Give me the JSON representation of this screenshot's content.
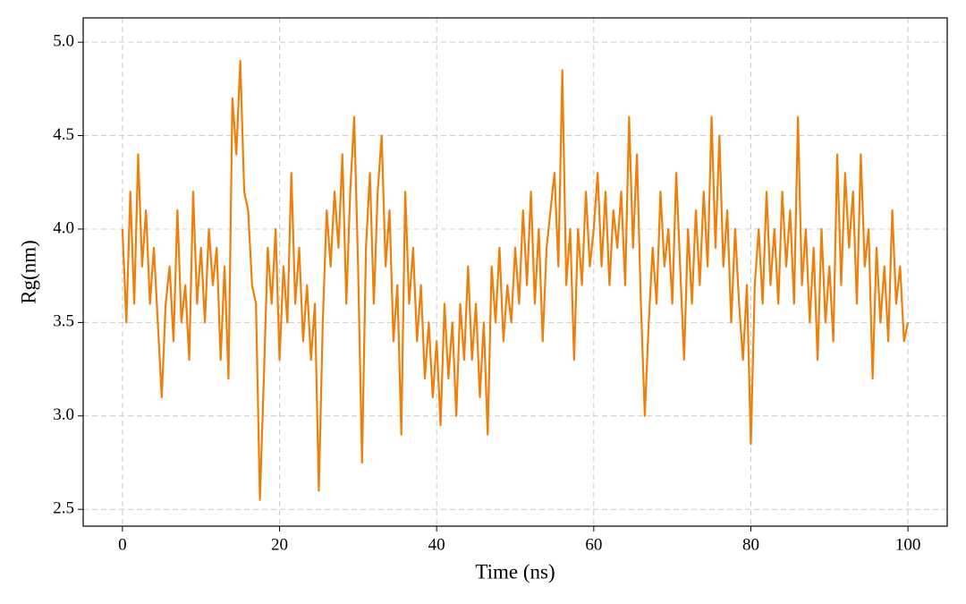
{
  "chart_data": {
    "type": "line",
    "xlabel": "Time (ns)",
    "ylabel": "Rg(nm)",
    "x": [
      0,
      0.5,
      1,
      1.5,
      2,
      2.5,
      3,
      3.5,
      4,
      4.5,
      5,
      5.5,
      6,
      6.5,
      7,
      7.5,
      8,
      8.5,
      9,
      9.5,
      10,
      10.5,
      11,
      11.5,
      12,
      12.5,
      13,
      13.5,
      14,
      14.5,
      15,
      15.5,
      16,
      16.5,
      17,
      17.5,
      18,
      18.5,
      19,
      19.5,
      20,
      20.5,
      21,
      21.5,
      22,
      22.5,
      23,
      23.5,
      24,
      24.5,
      25,
      25.5,
      26,
      26.5,
      27,
      27.5,
      28,
      28.5,
      29,
      29.5,
      30,
      30.5,
      31,
      31.5,
      32,
      32.5,
      33,
      33.5,
      34,
      34.5,
      35,
      35.5,
      36,
      36.5,
      37,
      37.5,
      38,
      38.5,
      39,
      39.5,
      40,
      40.5,
      41,
      41.5,
      42,
      42.5,
      43,
      43.5,
      44,
      44.5,
      45,
      45.5,
      46,
      46.5,
      47,
      47.5,
      48,
      48.5,
      49,
      49.5,
      50,
      50.5,
      51,
      51.5,
      52,
      52.5,
      53,
      53.5,
      54,
      54.5,
      55,
      55.5,
      56,
      56.5,
      57,
      57.5,
      58,
      58.5,
      59,
      59.5,
      60,
      60.5,
      61,
      61.5,
      62,
      62.5,
      63,
      63.5,
      64,
      64.5,
      65,
      65.5,
      66,
      66.5,
      67,
      67.5,
      68,
      68.5,
      69,
      69.5,
      70,
      70.5,
      71,
      71.5,
      72,
      72.5,
      73,
      73.5,
      74,
      74.5,
      75,
      75.5,
      76,
      76.5,
      77,
      77.5,
      78,
      78.5,
      79,
      79.5,
      80,
      80.5,
      81,
      81.5,
      82,
      82.5,
      83,
      83.5,
      84,
      84.5,
      85,
      85.5,
      86,
      86.5,
      87,
      87.5,
      88,
      88.5,
      89,
      89.5,
      90,
      90.5,
      91,
      91.5,
      92,
      92.5,
      93,
      93.5,
      94,
      94.5,
      95,
      95.5,
      96,
      96.5,
      97,
      97.5,
      98,
      98.5,
      99,
      99.5,
      100
    ],
    "series": [
      {
        "color": "#ef7f0b",
        "values": [
          4.0,
          3.5,
          4.2,
          3.6,
          4.4,
          3.8,
          4.1,
          3.6,
          3.9,
          3.5,
          3.1,
          3.6,
          3.8,
          3.4,
          4.1,
          3.5,
          3.7,
          3.3,
          4.2,
          3.6,
          3.9,
          3.5,
          4.0,
          3.7,
          3.9,
          3.3,
          3.8,
          3.2,
          4.7,
          4.4,
          4.9,
          4.2,
          4.1,
          3.7,
          3.6,
          2.55,
          3.2,
          3.9,
          3.6,
          4.0,
          3.3,
          3.8,
          3.5,
          4.3,
          3.6,
          3.9,
          3.4,
          3.7,
          3.3,
          3.6,
          2.6,
          3.5,
          4.1,
          3.8,
          4.2,
          3.9,
          4.4,
          3.6,
          4.2,
          4.6,
          3.8,
          2.75,
          3.9,
          4.3,
          3.6,
          4.2,
          4.5,
          3.8,
          4.1,
          3.4,
          3.7,
          2.9,
          4.2,
          3.6,
          3.9,
          3.4,
          3.7,
          3.2,
          3.5,
          3.1,
          3.4,
          2.95,
          3.6,
          3.2,
          3.5,
          3.0,
          3.6,
          3.3,
          3.8,
          3.3,
          3.6,
          3.1,
          3.5,
          2.9,
          3.8,
          3.5,
          3.9,
          3.4,
          3.7,
          3.5,
          3.9,
          3.6,
          4.1,
          3.7,
          4.2,
          3.6,
          4.0,
          3.4,
          3.9,
          4.1,
          4.3,
          3.8,
          4.85,
          3.7,
          4.0,
          3.3,
          4.0,
          3.7,
          4.2,
          3.8,
          4.0,
          4.3,
          3.8,
          4.2,
          3.7,
          4.1,
          3.9,
          4.2,
          3.7,
          4.6,
          3.9,
          4.4,
          3.6,
          3.0,
          3.5,
          3.9,
          3.6,
          4.2,
          3.8,
          4.0,
          3.6,
          4.3,
          3.8,
          3.3,
          4.0,
          3.6,
          4.1,
          3.7,
          4.2,
          3.8,
          4.6,
          3.9,
          4.5,
          3.8,
          4.1,
          3.5,
          4.0,
          3.6,
          3.3,
          3.7,
          2.85,
          3.7,
          4.0,
          3.6,
          4.2,
          3.7,
          4.0,
          3.6,
          4.2,
          3.8,
          4.1,
          3.6,
          4.6,
          3.7,
          4.0,
          3.5,
          3.9,
          3.3,
          4.0,
          3.5,
          3.8,
          3.4,
          4.4,
          3.7,
          4.3,
          3.9,
          4.2,
          3.6,
          4.4,
          3.8,
          4.0,
          3.2,
          3.9,
          3.5,
          3.8,
          3.4,
          4.1,
          3.6,
          3.8,
          3.4,
          3.5
        ]
      }
    ],
    "xlim": [
      -5,
      105
    ],
    "ylim": [
      2.41,
      5.13
    ],
    "xticks": [
      0,
      20,
      40,
      60,
      80,
      100
    ],
    "yticks": [
      2.5,
      {
        "value": 3,
        "label": "3.0"
      },
      3.5,
      {
        "value": 4,
        "label": "4.0"
      },
      4.5,
      {
        "value": 5,
        "label": "5.0"
      }
    ],
    "grid": true
  }
}
